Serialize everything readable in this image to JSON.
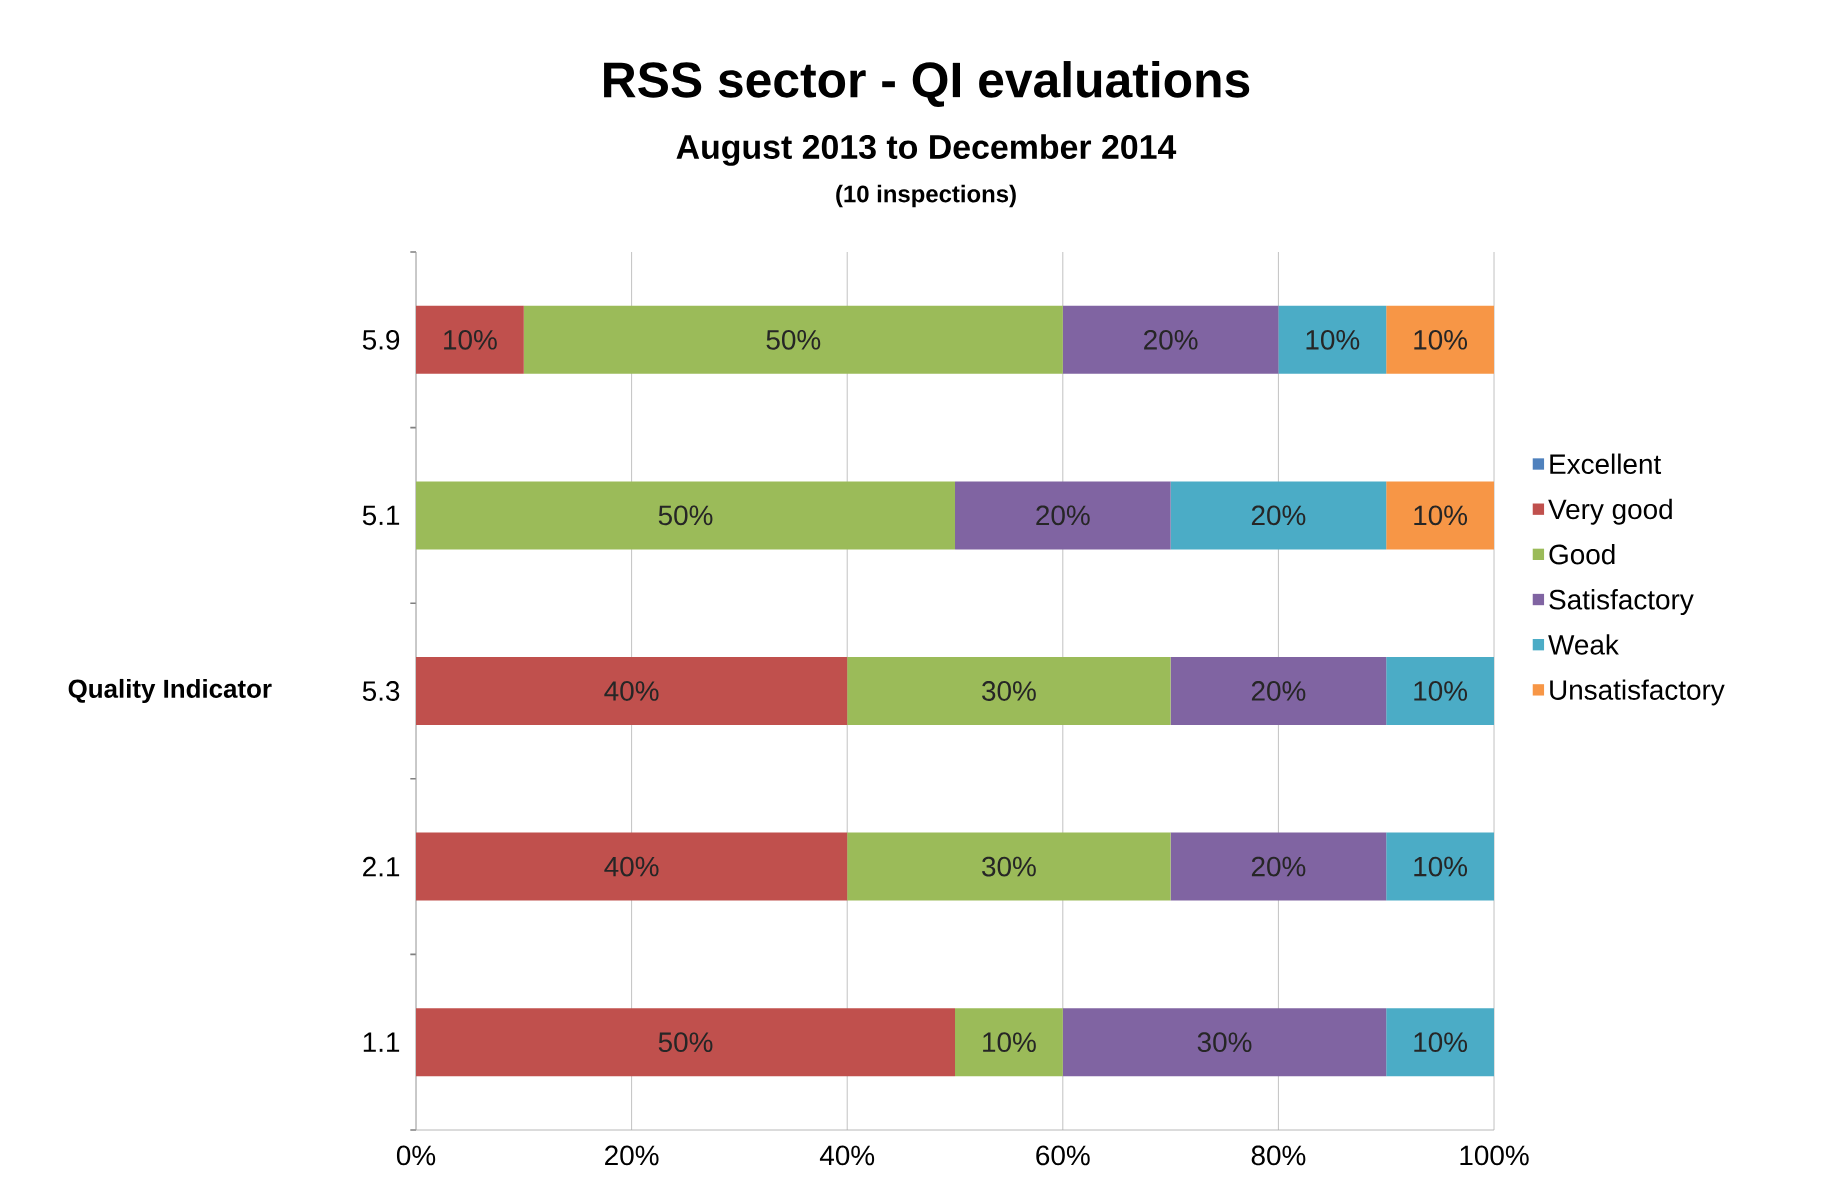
{
  "chart_data": {
    "type": "bar",
    "orientation": "horizontal",
    "stacked": true,
    "title": "RSS sector - QI evaluations",
    "subtitle": "August 2013 to December 2014",
    "annotations": [
      "(10 inspections)"
    ],
    "ylabel": "Quality Indicator",
    "categories": [
      "5.9",
      "5.1",
      "5.3",
      "2.1",
      "1.1"
    ],
    "series": [
      {
        "name": "Excellent",
        "color": "#4f81bd",
        "values": [
          0,
          0,
          0,
          0,
          0
        ],
        "value_labels": [
          null,
          null,
          null,
          null,
          null
        ]
      },
      {
        "name": "Very good",
        "color": "#c0504d",
        "values": [
          10,
          0,
          40,
          40,
          50
        ],
        "value_labels": [
          "10%",
          null,
          "40%",
          "40%",
          "50%"
        ]
      },
      {
        "name": "Good",
        "color": "#9bbb59",
        "values": [
          50,
          50,
          30,
          30,
          10
        ],
        "value_labels": [
          "50%",
          "50%",
          "30%",
          "30%",
          "10%"
        ]
      },
      {
        "name": "Satisfactory",
        "color": "#8064a2",
        "values": [
          20,
          20,
          20,
          20,
          30
        ],
        "value_labels": [
          "20%",
          "20%",
          "20%",
          "20%",
          "30%"
        ]
      },
      {
        "name": "Weak",
        "color": "#4bacc6",
        "values": [
          10,
          20,
          10,
          10,
          10
        ],
        "value_labels": [
          "10%",
          "20%",
          "10%",
          "10%",
          "10%"
        ]
      },
      {
        "name": "Unsatisfactory",
        "color": "#f79646",
        "values": [
          10,
          10,
          0,
          0,
          0
        ],
        "value_labels": [
          "10%",
          "10%",
          null,
          null,
          null
        ]
      }
    ],
    "xlim": [
      0,
      100
    ],
    "xticks": [
      {
        "value": 0,
        "label": "0%"
      },
      {
        "value": 20,
        "label": "20%"
      },
      {
        "value": 40,
        "label": "40%"
      },
      {
        "value": 60,
        "label": "60%"
      },
      {
        "value": 80,
        "label": "80%"
      },
      {
        "value": 100,
        "label": "100%"
      }
    ],
    "grid": "x",
    "legend": "right"
  }
}
